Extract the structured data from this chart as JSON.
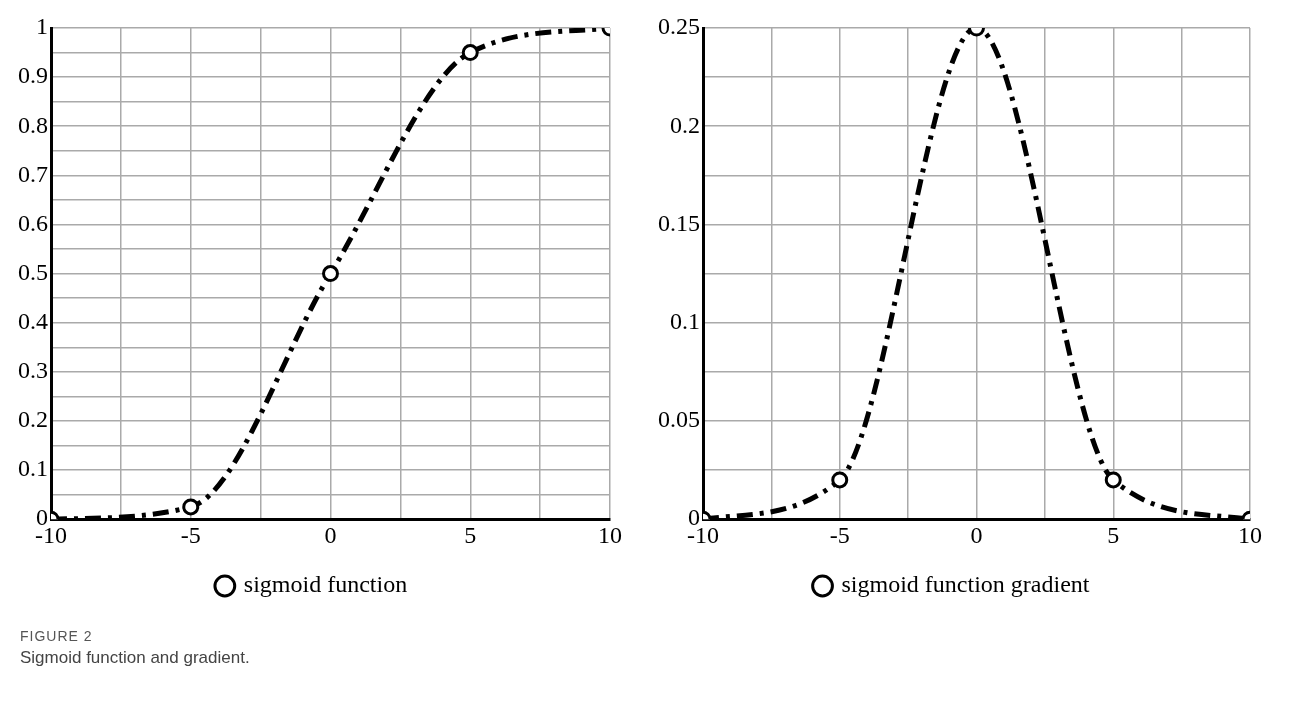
{
  "chart_data": [
    {
      "type": "line",
      "x": [
        -10,
        -5,
        0,
        5,
        10
      ],
      "series": [
        {
          "name": "sigmoid function",
          "color": "#000000",
          "values": [
            0,
            0.025,
            0.5,
            0.95,
            1
          ]
        }
      ],
      "xlim": [
        -10,
        10
      ],
      "xticks": [
        -10,
        {
          "value": -7.5,
          "label": null
        },
        -5,
        {
          "value": -2.5,
          "label": null
        },
        0,
        {
          "value": 2.5,
          "label": null
        },
        5,
        {
          "value": 7.5,
          "label": null
        },
        10
      ],
      "ylim": [
        0,
        1
      ],
      "yticks": [
        0,
        {
          "value": 0.05,
          "label": null
        },
        0.1,
        {
          "value": 0.15,
          "label": null
        },
        0.2,
        {
          "value": 0.25,
          "label": null
        },
        0.3,
        {
          "value": 0.35,
          "label": null
        },
        0.4,
        {
          "value": 0.45,
          "label": null
        },
        0.5,
        {
          "value": 0.55,
          "label": null
        },
        0.6,
        {
          "value": 0.65,
          "label": null
        },
        0.7,
        {
          "value": 0.75,
          "label": null
        },
        0.8,
        {
          "value": 0.85,
          "label": null
        },
        0.9,
        {
          "value": 0.95,
          "label": null
        },
        1
      ],
      "grid": true,
      "legend": "bottom",
      "marker": "circle",
      "line_style": "dashed"
    },
    {
      "type": "line",
      "x": [
        -10,
        -5,
        0,
        5,
        10
      ],
      "series": [
        {
          "name": "sigmoid function gradient",
          "color": "#000000",
          "values": [
            0,
            0.02,
            0.25,
            0.02,
            0
          ]
        }
      ],
      "xlim": [
        -10,
        10
      ],
      "xticks": [
        -10,
        {
          "value": -7.5,
          "label": null
        },
        -5,
        {
          "value": -2.5,
          "label": null
        },
        0,
        {
          "value": 2.5,
          "label": null
        },
        5,
        {
          "value": 7.5,
          "label": null
        },
        10
      ],
      "ylim": [
        0,
        0.25
      ],
      "yticks": [
        0,
        {
          "value": 0.025,
          "label": null
        },
        0.05,
        {
          "value": 0.075,
          "label": null
        },
        0.1,
        {
          "value": 0.125,
          "label": null
        },
        0.15,
        {
          "value": 0.175,
          "label": null
        },
        0.2,
        {
          "value": 0.225,
          "label": null
        },
        0.25
      ],
      "grid": true,
      "legend": "bottom",
      "marker": "circle",
      "line_style": "dashed",
      "annotations": [
        "FIGURE 2",
        "Sigmoid function and gradient."
      ]
    }
  ]
}
